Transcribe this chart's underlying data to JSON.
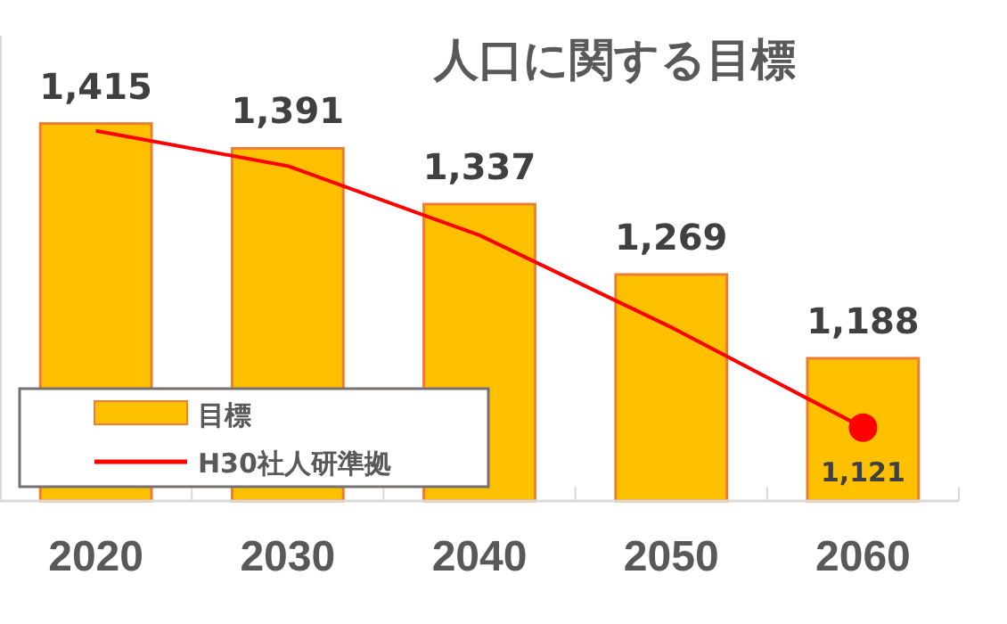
{
  "chart_data": {
    "type": "bar",
    "title": "人口に関する目標",
    "categories": [
      "2020",
      "2030",
      "2040",
      "2050",
      "2060"
    ],
    "series": [
      {
        "name": "目標",
        "color": "#ffc000",
        "values": [
          1415,
          1391,
          1337,
          1269,
          1188
        ],
        "value_labels": [
          "1,415",
          "1,391",
          "1,337",
          "1,269",
          "1,188"
        ]
      },
      {
        "name": "H30社人研準拠",
        "type": "line",
        "color": "#ff0000",
        "values": [
          1408,
          1374,
          1307,
          1218,
          1121
        ],
        "value_labels": [
          null,
          null,
          null,
          null,
          "1,121"
        ]
      }
    ],
    "ylim": [
      1050,
      1500
    ],
    "tick_labels": "x",
    "legend": "left"
  }
}
